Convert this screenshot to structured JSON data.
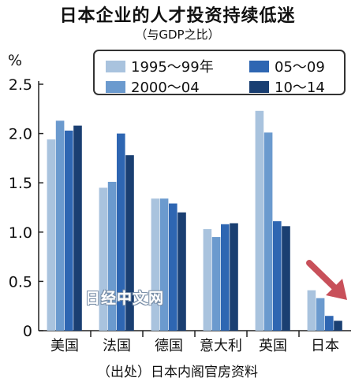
{
  "chart_data": {
    "type": "bar",
    "title": "日本企业的人才投资持续低迷",
    "subtitle": "（与GDP之比）",
    "unit": "%",
    "categories": [
      "美国",
      "法国",
      "德国",
      "意大利",
      "英国",
      "日本"
    ],
    "series": [
      {
        "name": "1995～99年",
        "color": "#a9c3de",
        "values": [
          1.94,
          1.45,
          1.34,
          1.03,
          2.23,
          0.41
        ]
      },
      {
        "name": "2000～04",
        "color": "#6b9ace",
        "values": [
          2.13,
          1.51,
          1.34,
          0.95,
          2.01,
          0.33
        ]
      },
      {
        "name": "05～09",
        "color": "#2e66b2",
        "values": [
          2.03,
          2.0,
          1.29,
          1.08,
          1.11,
          0.15
        ]
      },
      {
        "name": "10～14",
        "color": "#1a3f72",
        "values": [
          2.08,
          1.78,
          1.2,
          1.09,
          1.06,
          0.1
        ]
      }
    ],
    "yticks": [
      "0",
      "0.5",
      "1.0",
      "1.5",
      "2.0",
      "2.5"
    ],
    "ylim": [
      0,
      2.5
    ],
    "grid": false,
    "legend": "top",
    "annotation": {
      "type": "arrow",
      "target": "日本",
      "color": "#c8505a"
    }
  },
  "source": "（出处）日本内阁官房资料",
  "watermark": "日经中文网"
}
